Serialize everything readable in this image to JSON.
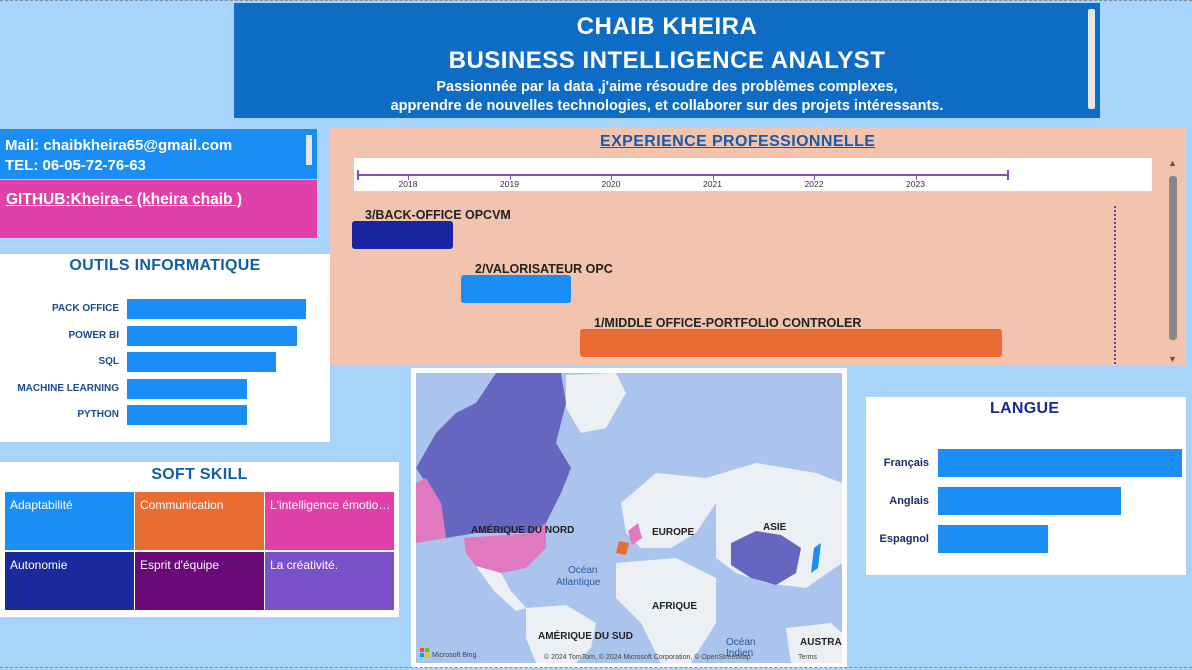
{
  "header": {
    "name": "CHAIB KHEIRA",
    "role": "BUSINESS INTELLIGENCE ANALYST",
    "tagline_line1": "Passionnée par la data ,j'aime résoudre des problèmes complexes,",
    "tagline_line2": "apprendre de nouvelles technologies, et collaborer sur des projets intéressants."
  },
  "contact": {
    "mail": "Mail: chaibkheira65@gmail.com",
    "tel": "TEL: 06-05-72-76-63",
    "github": "GITHUB:Kheira-c (kheira chaib )"
  },
  "outils": {
    "title": "OUTILS INFORMATIQUE",
    "items": [
      {
        "label": "PACK OFFICE",
        "level": 1.0
      },
      {
        "label": "POWER BI",
        "level": 0.95
      },
      {
        "label": "SQL",
        "level": 0.83
      },
      {
        "label": "MACHINE LEARNING",
        "level": 0.67
      },
      {
        "label": "PYTHON",
        "level": 0.67
      }
    ],
    "color": "#1b8ef5"
  },
  "soft": {
    "title": "SOFT SKILL",
    "tiles": [
      {
        "label": "Adaptabilité",
        "color": "#1b8ef5"
      },
      {
        "label": "Communication",
        "color": "#e86c34"
      },
      {
        "label": "L'intelligence émotionnelle",
        "color": "#e040a8"
      },
      {
        "label": "Autonomie",
        "color": "#1a2a9c"
      },
      {
        "label": "Esprit d'équipe",
        "color": "#6a0a78"
      },
      {
        "label": "La créativité.",
        "color": "#7a50c8"
      }
    ]
  },
  "experience": {
    "title": "EXPERIENCE PROFESSIONNELLE",
    "years": [
      "2018",
      "2019",
      "2020",
      "2021",
      "2022",
      "2023"
    ],
    "items": [
      {
        "label": "3/BACK-OFFICE OPCVM",
        "color": "#1a24a0"
      },
      {
        "label": "2/VALORISATEUR OPC",
        "color": "#1b8ef5"
      },
      {
        "label": "1/MIDDLE OFFICE-PORTFOLIO CONTROLER",
        "color": "#e86c34"
      }
    ]
  },
  "map": {
    "labels": {
      "na": "AMÉRIQUE DU NORD",
      "europe": "EUROPE",
      "asie": "ASIE",
      "ocean_atl_1": "Océan",
      "ocean_atl_2": "Atlantique",
      "afrique": "AFRIQUE",
      "sa": "AMÉRIQUE DU SUD",
      "ocean_ind_1": "Océan",
      "ocean_ind_2": "Indien",
      "austra": "AUSTRA"
    },
    "logo": "Microsoft Bing",
    "copyright": "© 2024 TomTom, © 2024 Microsoft Corporation, © OpenStreetMap",
    "terms": "Terms",
    "colors": {
      "water": "#aac4ee",
      "land": "#eceff4",
      "highlight_dark": "#6666c0",
      "highlight_pink": "#e079c0"
    }
  },
  "langue": {
    "title": "LANGUE",
    "items": [
      {
        "label": "Français",
        "level": 1.0
      },
      {
        "label": "Anglais",
        "level": 0.75
      },
      {
        "label": "Espagnol",
        "level": 0.45
      }
    ],
    "color": "#1b8ef5"
  }
}
